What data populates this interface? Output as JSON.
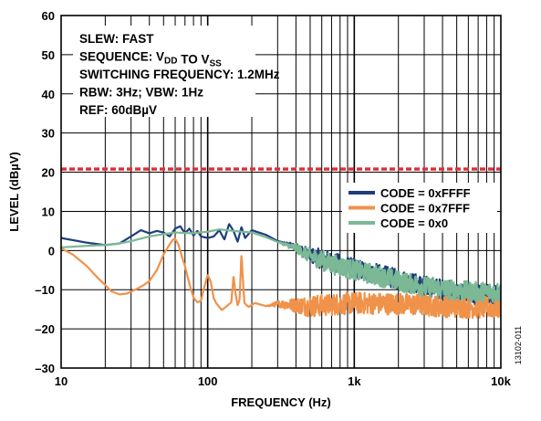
{
  "chart_data": {
    "type": "line",
    "xlabel": "FREQUENCY (Hz)",
    "ylabel": "LEVEL (dBµV)",
    "xscale": "log",
    "xlim": [
      10,
      10000
    ],
    "ylim": [
      -30,
      60
    ],
    "x_ticks": [
      10,
      100,
      1000,
      10000
    ],
    "x_tick_labels": [
      "10",
      "100",
      "1k",
      "10k"
    ],
    "y_ticks": [
      -30,
      -20,
      -10,
      0,
      10,
      20,
      30,
      40,
      50,
      60
    ],
    "y_tick_labels": [
      "–30",
      "–20",
      "–10",
      "0",
      "10",
      "20",
      "30",
      "40",
      "50",
      "60"
    ],
    "grid": true,
    "annotations": [
      {
        "text": "SLEW: FAST"
      },
      {
        "parts": [
          {
            "t": "SEQUENCE: V"
          },
          {
            "t": "DD",
            "sub": true
          },
          {
            "t": " TO V"
          },
          {
            "t": "SS",
            "sub": true
          }
        ]
      },
      {
        "text": "SWITCHING FREQUENCY: 1.2MHz"
      },
      {
        "text": "RBW: 3Hz; VBW: 1Hz"
      },
      {
        "text": "REF: 60dBµV"
      }
    ],
    "limit_line": {
      "y": 20.8,
      "color": "#e0303a",
      "style": "dashed"
    },
    "legend_position": "right",
    "figure_id": "13102-011",
    "series": [
      {
        "name": "CODE = 0xFFFF",
        "color": "#1f3f7a",
        "noise_from": 300,
        "noise_amp": 2.6,
        "points": [
          [
            10,
            3.2
          ],
          [
            15,
            2.0
          ],
          [
            20,
            1.4
          ],
          [
            25,
            1.8
          ],
          [
            30,
            3.6
          ],
          [
            35,
            5.2
          ],
          [
            40,
            4.4
          ],
          [
            45,
            5.0
          ],
          [
            50,
            4.6
          ],
          [
            55,
            3.6
          ],
          [
            60,
            5.6
          ],
          [
            65,
            6.2
          ],
          [
            70,
            4.4
          ],
          [
            75,
            5.6
          ],
          [
            80,
            3.8
          ],
          [
            85,
            5.0
          ],
          [
            90,
            3.6
          ],
          [
            100,
            3.2
          ],
          [
            110,
            3.6
          ],
          [
            120,
            5.2
          ],
          [
            130,
            2.8
          ],
          [
            140,
            6.8
          ],
          [
            150,
            5.0
          ],
          [
            160,
            2.2
          ],
          [
            170,
            6.0
          ],
          [
            180,
            3.2
          ],
          [
            200,
            5.2
          ],
          [
            250,
            4.0
          ],
          [
            300,
            2.4
          ],
          [
            400,
            0.8
          ],
          [
            500,
            -1.2
          ],
          [
            700,
            -3.0
          ],
          [
            1000,
            -4.6
          ],
          [
            1500,
            -6.2
          ],
          [
            2000,
            -7.4
          ],
          [
            3000,
            -9.0
          ],
          [
            5000,
            -10.6
          ],
          [
            7000,
            -11.4
          ],
          [
            10000,
            -11.2
          ]
        ]
      },
      {
        "name": "CODE = 0x7FFF",
        "color": "#f0924a",
        "noise_from": 250,
        "noise_amp": 2.8,
        "points": [
          [
            10,
            0.6
          ],
          [
            12,
            -1.0
          ],
          [
            15,
            -4.0
          ],
          [
            18,
            -7.2
          ],
          [
            20,
            -8.8
          ],
          [
            22,
            -10.4
          ],
          [
            25,
            -11.2
          ],
          [
            28,
            -11.0
          ],
          [
            32,
            -10.0
          ],
          [
            36,
            -9.0
          ],
          [
            40,
            -7.8
          ],
          [
            45,
            -5.0
          ],
          [
            50,
            -1.0
          ],
          [
            55,
            1.6
          ],
          [
            58,
            2.8
          ],
          [
            60,
            3.0
          ],
          [
            63,
            1.6
          ],
          [
            66,
            -1.0
          ],
          [
            70,
            -4.0
          ],
          [
            75,
            -8.5
          ],
          [
            80,
            -12.0
          ],
          [
            85,
            -13.2
          ],
          [
            90,
            -12.8
          ],
          [
            95,
            -9.2
          ],
          [
            100,
            -6.2
          ],
          [
            105,
            -8.0
          ],
          [
            110,
            -12.2
          ],
          [
            115,
            -13.6
          ],
          [
            125,
            -15.2
          ],
          [
            135,
            -14.2
          ],
          [
            145,
            -13.2
          ],
          [
            150,
            -6.5
          ],
          [
            155,
            -11.0
          ],
          [
            160,
            -14.0
          ],
          [
            165,
            -12.5
          ],
          [
            170,
            -1.0
          ],
          [
            173,
            -6.0
          ],
          [
            178,
            -13.4
          ],
          [
            190,
            -14.4
          ],
          [
            210,
            -13.4
          ],
          [
            250,
            -14.2
          ],
          [
            300,
            -13.6
          ],
          [
            500,
            -14.2
          ],
          [
            1000,
            -13.4
          ],
          [
            2000,
            -13.6
          ],
          [
            5000,
            -14.4
          ],
          [
            10000,
            -14.6
          ]
        ]
      },
      {
        "name": "CODE = 0x0",
        "color": "#7ab896",
        "noise_from": 300,
        "noise_amp": 2.6,
        "points": [
          [
            10,
            0.8
          ],
          [
            15,
            1.2
          ],
          [
            20,
            1.4
          ],
          [
            25,
            1.8
          ],
          [
            30,
            2.4
          ],
          [
            40,
            3.6
          ],
          [
            50,
            4.2
          ],
          [
            60,
            4.6
          ],
          [
            80,
            4.4
          ],
          [
            100,
            4.8
          ],
          [
            120,
            5.4
          ],
          [
            150,
            5.0
          ],
          [
            200,
            4.6
          ],
          [
            250,
            3.4
          ],
          [
            300,
            2.2
          ],
          [
            400,
            0.6
          ],
          [
            500,
            -1.4
          ],
          [
            700,
            -3.4
          ],
          [
            1000,
            -5.0
          ],
          [
            1500,
            -6.6
          ],
          [
            2000,
            -7.8
          ],
          [
            3000,
            -9.2
          ],
          [
            5000,
            -10.2
          ],
          [
            7000,
            -10.6
          ],
          [
            10000,
            -10.6
          ]
        ]
      }
    ]
  }
}
